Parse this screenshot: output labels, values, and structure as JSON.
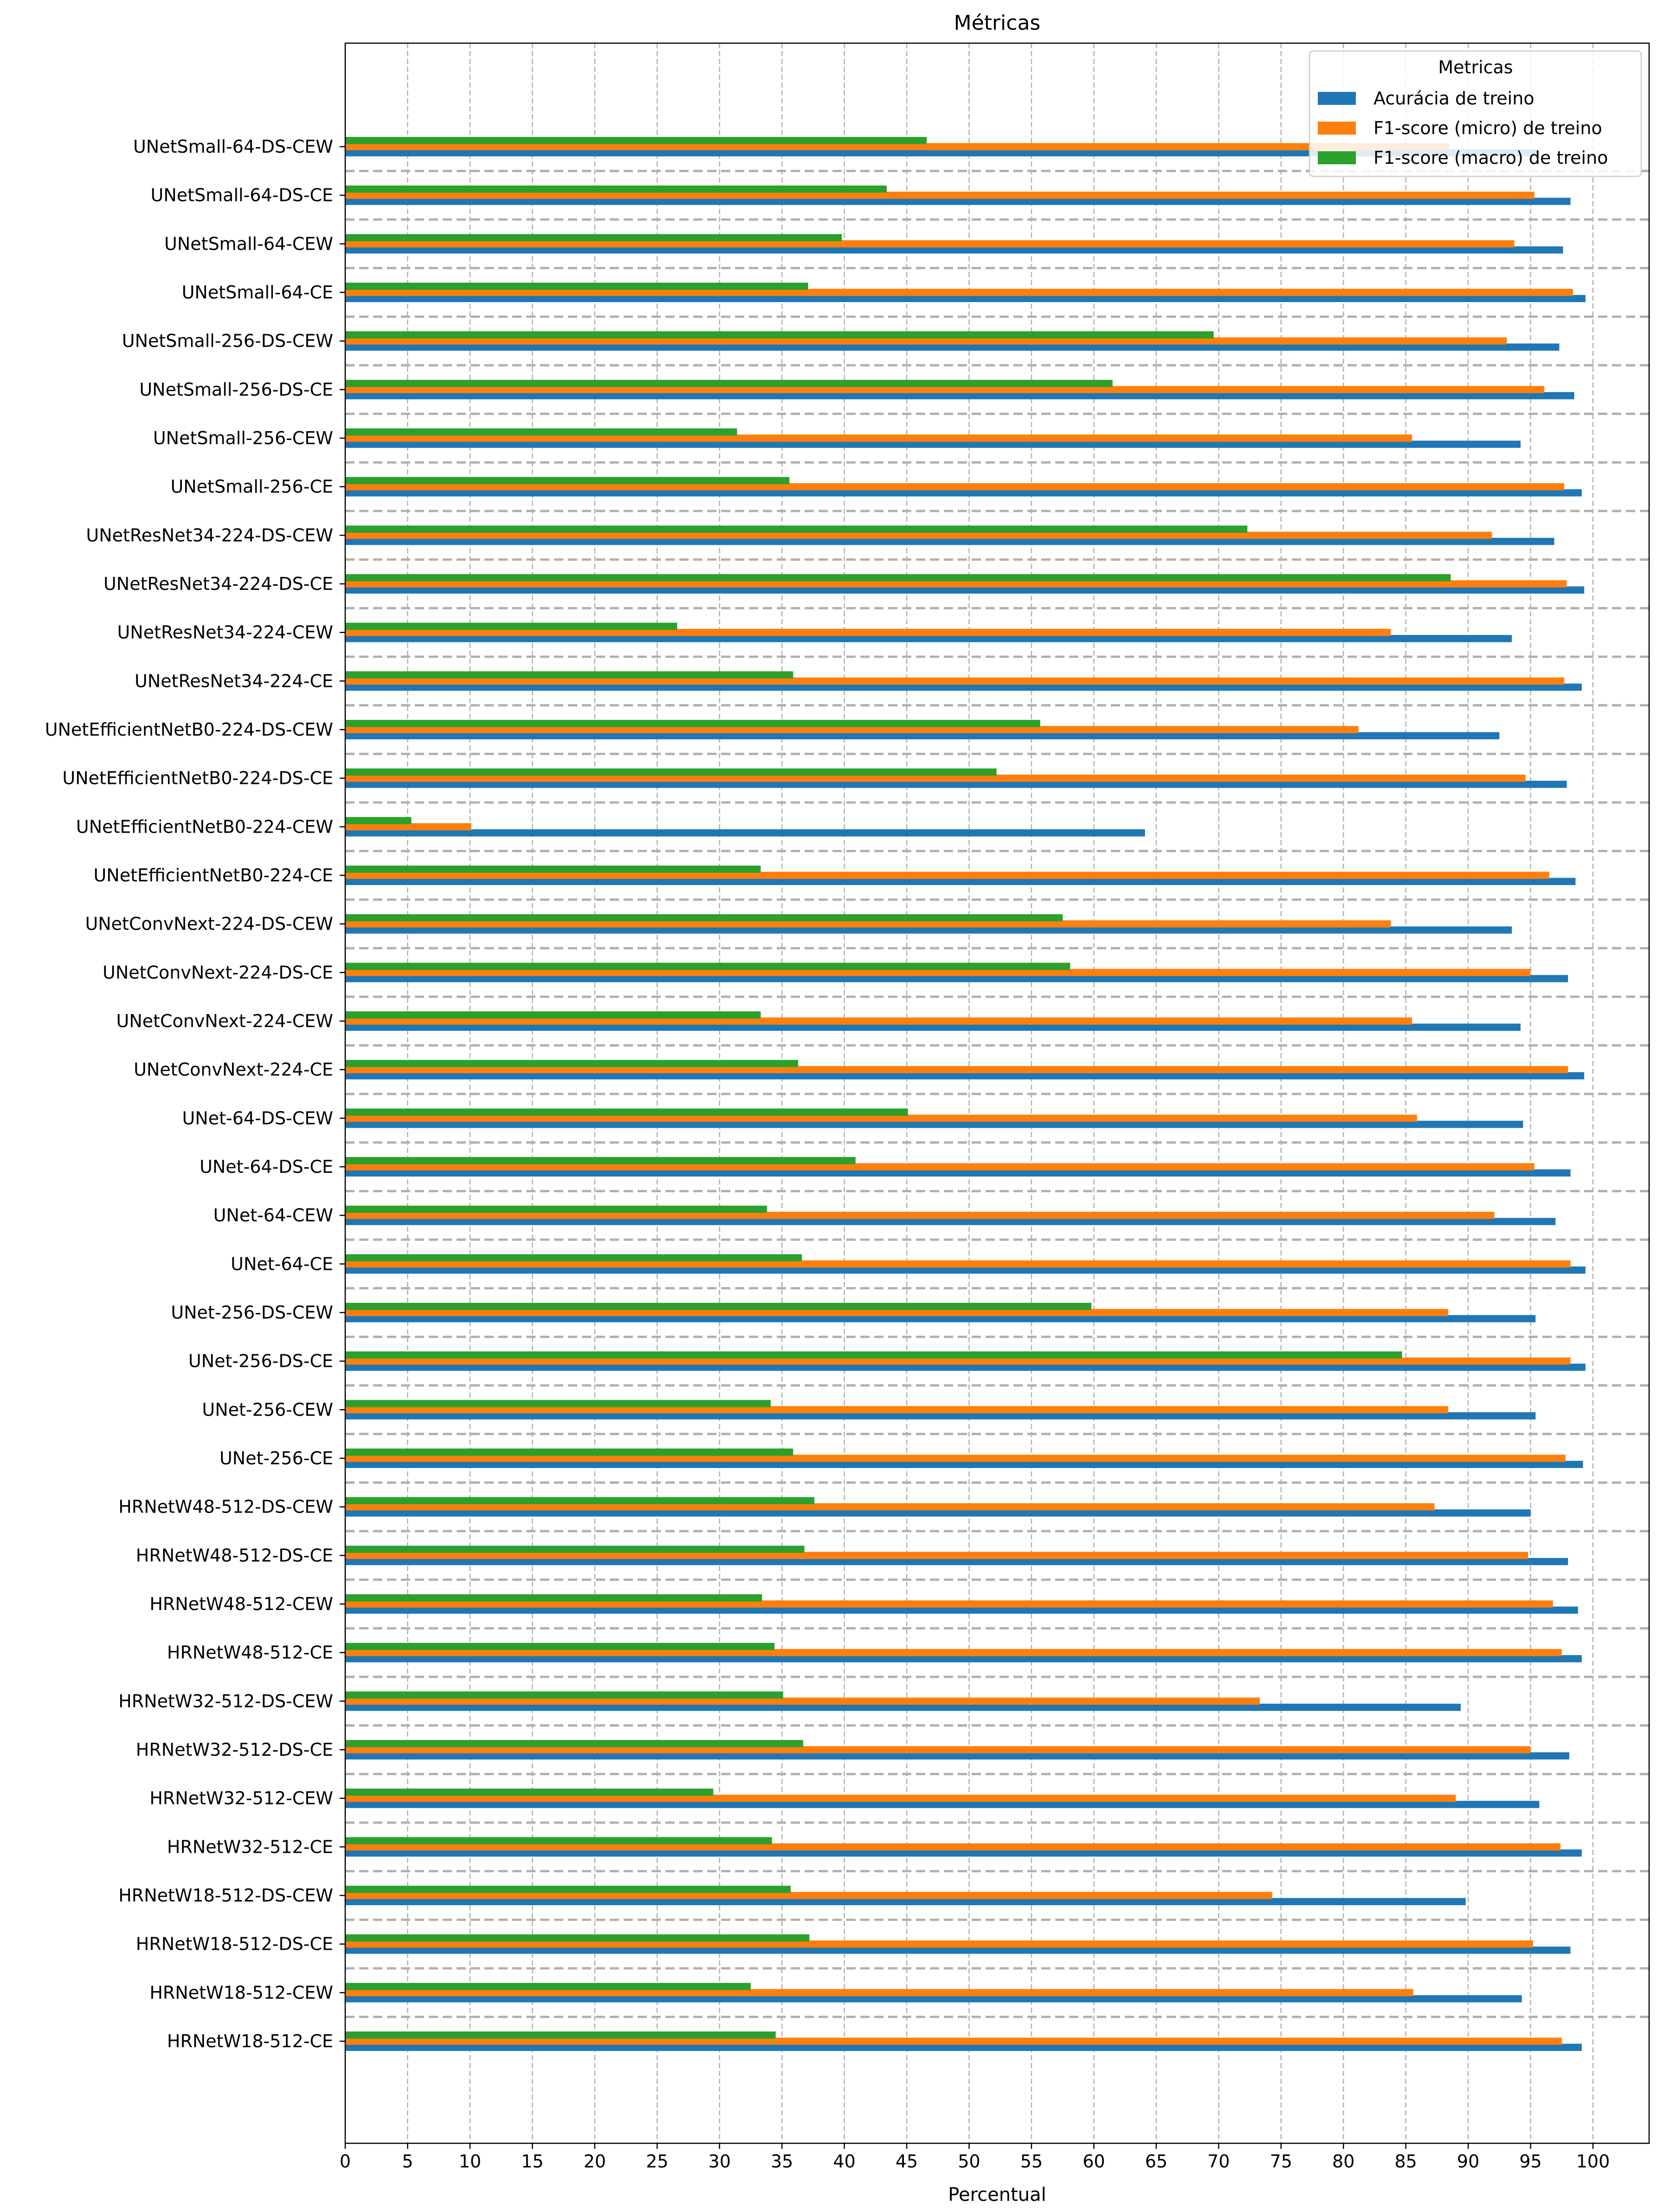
{
  "chart_data": {
    "type": "bar",
    "orientation": "horizontal",
    "title": "Métricas",
    "xlabel": "Percentual",
    "ylabel": "",
    "xlim": [
      0,
      104.5
    ],
    "xticks": [
      0,
      5,
      10,
      15,
      20,
      25,
      30,
      35,
      40,
      45,
      50,
      55,
      60,
      65,
      70,
      75,
      80,
      85,
      90,
      95,
      100
    ],
    "grid": "x dashed; dashed separators between categories",
    "legend": {
      "title": "Metricas",
      "placement": "top-right"
    },
    "categories": [
      "UNetSmall-64-DS-CEW",
      "UNetSmall-64-DS-CE",
      "UNetSmall-64-CEW",
      "UNetSmall-64-CE",
      "UNetSmall-256-DS-CEW",
      "UNetSmall-256-DS-CE",
      "UNetSmall-256-CEW",
      "UNetSmall-256-CE",
      "UNetResNet34-224-DS-CEW",
      "UNetResNet34-224-DS-CE",
      "UNetResNet34-224-CEW",
      "UNetResNet34-224-CE",
      "UNetEfficientNetB0-224-DS-CEW",
      "UNetEfficientNetB0-224-DS-CE",
      "UNetEfficientNetB0-224-CEW",
      "UNetEfficientNetB0-224-CE",
      "UNetConvNext-224-DS-CEW",
      "UNetConvNext-224-DS-CE",
      "UNetConvNext-224-CEW",
      "UNetConvNext-224-CE",
      "UNet-64-DS-CEW",
      "UNet-64-DS-CE",
      "UNet-64-CEW",
      "UNet-64-CE",
      "UNet-256-DS-CEW",
      "UNet-256-DS-CE",
      "UNet-256-CEW",
      "UNet-256-CE",
      "HRNetW48-512-DS-CEW",
      "HRNetW48-512-DS-CE",
      "HRNetW48-512-CEW",
      "HRNetW48-512-CE",
      "HRNetW32-512-DS-CEW",
      "HRNetW32-512-DS-CE",
      "HRNetW32-512-CEW",
      "HRNetW32-512-CE",
      "HRNetW18-512-DS-CEW",
      "HRNetW18-512-DS-CE",
      "HRNetW18-512-CEW",
      "HRNetW18-512-CE"
    ],
    "series": [
      {
        "name": "Acurácia de treino",
        "color": "#1f77b4",
        "values": [
          95.6,
          98.2,
          97.6,
          99.4,
          97.3,
          98.5,
          94.2,
          99.1,
          96.9,
          99.3,
          93.5,
          99.1,
          92.5,
          97.9,
          64.1,
          98.6,
          93.5,
          98.0,
          94.2,
          99.3,
          94.4,
          98.2,
          97.0,
          99.4,
          95.4,
          99.4,
          95.4,
          99.2,
          95.0,
          98.0,
          98.8,
          99.1,
          89.4,
          98.1,
          95.7,
          99.1,
          89.8,
          98.2,
          94.3,
          99.1
        ]
      },
      {
        "name": "F1-score (micro) de treino",
        "color": "#ff7f0e",
        "values": [
          88.5,
          95.3,
          93.7,
          98.4,
          93.1,
          96.1,
          85.5,
          97.7,
          91.9,
          97.9,
          83.8,
          97.7,
          81.2,
          94.6,
          10.1,
          96.5,
          83.8,
          95.0,
          85.5,
          98.0,
          85.9,
          95.3,
          92.1,
          98.2,
          88.4,
          98.2,
          88.4,
          97.8,
          87.3,
          94.8,
          96.8,
          97.5,
          73.3,
          95.0,
          89.0,
          97.4,
          74.3,
          95.2,
          85.6,
          97.5
        ]
      },
      {
        "name": "F1-score (macro) de treino",
        "color": "#2ca02c",
        "values": [
          46.6,
          43.4,
          39.8,
          37.1,
          69.6,
          61.5,
          31.4,
          35.6,
          72.3,
          88.6,
          26.6,
          35.9,
          55.7,
          52.2,
          5.3,
          33.3,
          57.5,
          58.1,
          33.3,
          36.3,
          45.1,
          40.9,
          33.8,
          36.6,
          59.8,
          84.7,
          34.1,
          35.9,
          37.6,
          36.8,
          33.4,
          34.4,
          35.1,
          36.7,
          29.5,
          34.2,
          35.7,
          37.2,
          32.5,
          34.5
        ]
      }
    ]
  }
}
